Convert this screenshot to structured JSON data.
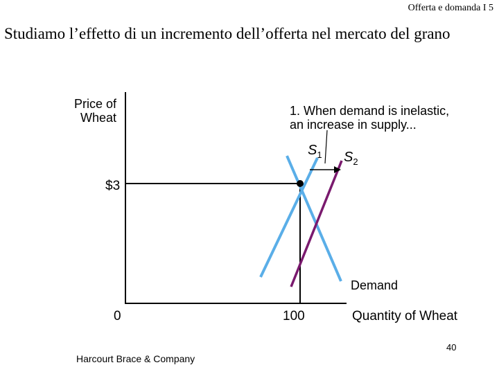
{
  "header": {
    "text": "Offerta e domanda I 5"
  },
  "slide": {
    "title": "Studiamo l’effetto di un incremento dell’offerta nel mercato del grano"
  },
  "diagram": {
    "y_axis_label": "Price of Wheat",
    "x_axis_label": "Quantity of Wheat",
    "origin_label": "0",
    "price_label": "$3",
    "quantity_label": "100",
    "annotation": "1. When demand is inelastic,\nan increase in supply...",
    "s1_label": {
      "letter": "S",
      "sub": "1"
    },
    "s2_label": {
      "letter": "S",
      "sub": "2"
    },
    "demand_label": "Demand",
    "colors": {
      "supply_1": "#5aaee8",
      "supply_2": "#7a1a6e",
      "demand": "#5aaee8",
      "axes": "#000000"
    }
  },
  "footer": {
    "publisher": "Harcourt Brace & Company",
    "page_number": "40"
  }
}
